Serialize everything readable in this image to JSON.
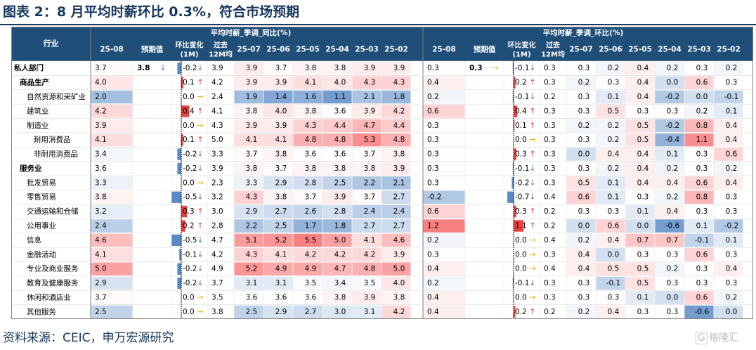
{
  "title": "图表 2：8 月平均时薪环比 0.3%，符合市场预期",
  "source": "资料来源：CEIC，申万宏源研究",
  "watermark": "格隆汇",
  "colors": {
    "header": "#1f4e78",
    "header_sub": "#deebf7",
    "pos": "#f8696b",
    "neg": "#5a8ac6",
    "neutral": "#ffffff",
    "arrow_up": "#e03c3c",
    "arrow_down": "#4f81bd",
    "arrow_flat": "#f2a900",
    "bar_pos": "#e83f3f",
    "bar_neg": "#5a8ac6"
  },
  "chart_data": {
    "type": "table",
    "row_header": "行业",
    "groups": [
      {
        "name": "平均时薪_季调_同比(%)",
        "latest_label": "25-08",
        "forecast_label": "预期值",
        "mom_label": "环比变化(1M)",
        "avg_label": "过去12M均",
        "months": [
          "25-07",
          "25-06",
          "25-05",
          "25-04",
          "25-03",
          "25-02"
        ]
      },
      {
        "name": "平均时薪_季调_环比(%)",
        "latest_label": "25-08",
        "forecast_label": "预期值",
        "mom_label": "环比变化(1M)",
        "avg_label": "过去12M均",
        "months": [
          "25-07",
          "25-06",
          "25-05",
          "25-04",
          "25-03",
          "25-02"
        ]
      }
    ],
    "rows": [
      {
        "name": "私人部门",
        "level": 0,
        "bold": true,
        "yoy": {
          "latest": 3.7,
          "forecast": 3.8,
          "forecast_arrow": "down",
          "chg": -0.2,
          "arrow": "down",
          "avg": 3.9,
          "hist": [
            3.9,
            3.7,
            3.8,
            3.8,
            3.9,
            3.9
          ]
        },
        "mom": {
          "latest": 0.3,
          "forecast": 0.3,
          "forecast_arrow": "flat",
          "chg": -0.1,
          "arrow": "down",
          "avg": 0.3,
          "hist": [
            0.3,
            0.2,
            0.4,
            0.2,
            0.3,
            0.2
          ]
        }
      },
      {
        "name": "商品生产",
        "level": 1,
        "bold": true,
        "yoy": {
          "latest": 4.0,
          "chg": 0.1,
          "arrow": "up",
          "avg": 4.2,
          "hist": [
            3.9,
            3.9,
            4.1,
            4.0,
            4.3,
            4.3
          ]
        },
        "mom": {
          "latest": 0.4,
          "chg": 0.2,
          "arrow": "up",
          "avg": 0.3,
          "hist": [
            0.2,
            0.3,
            0.4,
            0.0,
            0.6,
            0.3
          ]
        }
      },
      {
        "name": "自然资源和采矿业",
        "level": 2,
        "yoy": {
          "latest": 2.0,
          "chg": 0.0,
          "arrow": "flat",
          "avg": 2.4,
          "hist": [
            1.9,
            1.4,
            1.6,
            1.1,
            2.1,
            1.8
          ]
        },
        "mom": {
          "latest": 0.2,
          "chg": -0.1,
          "arrow": "down",
          "avg": 0.2,
          "hist": [
            0.3,
            0.1,
            0.4,
            -0.2,
            0.0,
            -0.1
          ]
        }
      },
      {
        "name": "建筑业",
        "level": 2,
        "yoy": {
          "latest": 4.2,
          "chg": 0.4,
          "arrow": "up",
          "avg": 4.1,
          "hist": [
            3.8,
            4.0,
            3.8,
            3.6,
            3.9,
            4.2
          ]
        },
        "mom": {
          "latest": 0.6,
          "chg": 0.4,
          "arrow": "up",
          "avg": 0.3,
          "hist": [
            0.3,
            0.5,
            0.3,
            0.3,
            0.2,
            0.1
          ]
        }
      },
      {
        "name": "制造业",
        "level": 2,
        "yoy": {
          "latest": 3.9,
          "chg": 0.0,
          "arrow": "flat",
          "avg": 4.3,
          "hist": [
            3.9,
            3.9,
            4.3,
            4.4,
            4.7,
            4.4
          ]
        },
        "mom": {
          "latest": 0.3,
          "chg": 0.1,
          "arrow": "up",
          "avg": 0.3,
          "hist": [
            0.2,
            0.2,
            0.5,
            -0.2,
            0.8,
            0.4
          ]
        }
      },
      {
        "name": "耐用消费品",
        "level": 3,
        "yoy": {
          "latest": 4.1,
          "chg": 0.1,
          "arrow": "up",
          "avg": 5.0,
          "hist": [
            4.1,
            4.1,
            4.8,
            4.8,
            5.3,
            4.8
          ]
        },
        "mom": {
          "latest": 0.3,
          "chg": 0.0,
          "arrow": "flat",
          "avg": 0.3,
          "hist": [
            0.3,
            0.2,
            0.5,
            -0.4,
            1.1,
            0.4
          ]
        }
      },
      {
        "name": "非耐用消费品",
        "level": 3,
        "yoy": {
          "latest": 3.4,
          "chg": -0.2,
          "arrow": "down",
          "avg": 3.3,
          "hist": [
            3.7,
            3.8,
            3.6,
            3.6,
            3.7,
            3.8
          ]
        },
        "mom": {
          "latest": 0.3,
          "chg": 0.3,
          "arrow": "up",
          "avg": 0.3,
          "hist": [
            0.0,
            0.4,
            0.4,
            0.1,
            0.3,
            0.6
          ]
        }
      },
      {
        "name": "服务业",
        "level": 1,
        "bold": true,
        "yoy": {
          "latest": 3.6,
          "chg": -0.2,
          "arrow": "down",
          "avg": 3.9,
          "hist": [
            3.8,
            3.7,
            3.8,
            3.8,
            3.8,
            3.9
          ]
        },
        "mom": {
          "latest": 0.3,
          "chg": -0.1,
          "arrow": "down",
          "avg": 0.3,
          "hist": [
            0.3,
            0.2,
            0.4,
            0.2,
            0.3,
            0.2
          ]
        }
      },
      {
        "name": "批发贸易",
        "level": 2,
        "yoy": {
          "latest": 3.3,
          "chg": 0.0,
          "arrow": "flat",
          "avg": 2.3,
          "hist": [
            3.3,
            2.9,
            2.8,
            2.5,
            2.2,
            2.1
          ]
        },
        "mom": {
          "latest": 0.3,
          "chg": -0.2,
          "arrow": "down",
          "avg": 0.3,
          "hist": [
            0.5,
            0.1,
            0.4,
            0.4,
            0.6,
            0.4
          ]
        }
      },
      {
        "name": "零售贸易",
        "level": 2,
        "yoy": {
          "latest": 3.8,
          "chg": -0.5,
          "arrow": "down",
          "avg": 3.2,
          "hist": [
            4.3,
            3.8,
            3.7,
            3.9,
            3.7,
            2.7
          ]
        },
        "mom": {
          "latest": -0.2,
          "chg": -0.7,
          "arrow": "down",
          "avg": 0.4,
          "hist": [
            0.6,
            0.1,
            0.3,
            0.2,
            0.8,
            0.3
          ]
        }
      },
      {
        "name": "交通运输和仓储",
        "level": 2,
        "yoy": {
          "latest": 3.2,
          "chg": 0.3,
          "arrow": "up",
          "avg": 3.0,
          "hist": [
            2.9,
            2.7,
            2.6,
            2.8,
            2.4,
            2.4
          ]
        },
        "mom": {
          "latest": 0.6,
          "chg": 0.3,
          "arrow": "up",
          "avg": 0.2,
          "hist": [
            0.3,
            0.3,
            0.1,
            0.4,
            0.3,
            0.3
          ]
        }
      },
      {
        "name": "公用事业",
        "level": 2,
        "yoy": {
          "latest": 2.4,
          "chg": 0.2,
          "arrow": "up",
          "avg": 2.8,
          "hist": [
            2.2,
            2.5,
            1.7,
            1.8,
            2.7,
            2.7
          ]
        },
        "mom": {
          "latest": 1.2,
          "chg": 1.1,
          "arrow": "up",
          "avg": 0.2,
          "hist": [
            0.0,
            0.6,
            0.0,
            -0.6,
            0.1,
            -0.2
          ]
        }
      },
      {
        "name": "信息",
        "level": 2,
        "yoy": {
          "latest": 4.6,
          "chg": -0.5,
          "arrow": "down",
          "avg": 4.7,
          "hist": [
            5.1,
            5.2,
            5.5,
            5.0,
            4.1,
            4.6
          ]
        },
        "mom": {
          "latest": 0.2,
          "chg": 0.0,
          "arrow": "flat",
          "avg": 0.4,
          "hist": [
            0.2,
            0.4,
            0.7,
            0.7,
            -0.1,
            0.1
          ]
        }
      },
      {
        "name": "金融活动",
        "level": 2,
        "yoy": {
          "latest": 4.1,
          "chg": -0.1,
          "arrow": "down",
          "avg": 4.2,
          "hist": [
            4.3,
            4.1,
            4.2,
            4.2,
            4.2,
            3.9
          ]
        },
        "mom": {
          "latest": 0.3,
          "chg": 0.0,
          "arrow": "flat",
          "avg": 0.3,
          "hist": [
            0.4,
            0.0,
            0.3,
            0.3,
            0.6,
            0.3
          ]
        }
      },
      {
        "name": "专业及商业服务",
        "level": 2,
        "yoy": {
          "latest": 5.0,
          "chg": -0.2,
          "arrow": "down",
          "avg": 4.9,
          "hist": [
            5.2,
            4.9,
            4.9,
            4.7,
            4.8,
            5.0
          ]
        },
        "mom": {
          "latest": 0.4,
          "chg": 0.0,
          "arrow": "flat",
          "avg": 0.4,
          "hist": [
            0.4,
            0.5,
            0.5,
            0.2,
            0.3,
            0.4
          ]
        }
      },
      {
        "name": "教育及健康服务",
        "level": 2,
        "yoy": {
          "latest": 2.9,
          "chg": -0.2,
          "arrow": "down",
          "avg": 3.7,
          "hist": [
            3.1,
            3.1,
            3.5,
            3.4,
            3.5,
            4.0
          ]
        },
        "mom": {
          "latest": 0.2,
          "chg": -0.1,
          "arrow": "down",
          "avg": 0.3,
          "hist": [
            0.3,
            -0.1,
            0.5,
            0.3,
            0.3,
            0.3
          ]
        }
      },
      {
        "name": "休闲和酒店业",
        "level": 2,
        "yoy": {
          "latest": 3.7,
          "chg": 0.0,
          "arrow": "flat",
          "avg": 3.5,
          "hist": [
            3.6,
            3.6,
            3.6,
            3.8,
            3.9,
            3.8
          ]
        },
        "mom": {
          "latest": 0.4,
          "chg": 0.0,
          "arrow": "flat",
          "avg": 0.3,
          "hist": [
            0.3,
            0.3,
            0.1,
            0.0,
            0.6,
            0.2
          ]
        }
      },
      {
        "name": "其他服务",
        "level": 2,
        "yoy": {
          "latest": 2.5,
          "chg": 0.0,
          "arrow": "flat",
          "avg": 3.8,
          "hist": [
            2.5,
            2.9,
            2.7,
            3.0,
            3.1,
            4.2
          ]
        },
        "mom": {
          "latest": 0.4,
          "chg": 0.2,
          "arrow": "up",
          "avg": 0.2,
          "hist": [
            0.2,
            0.4,
            0.3,
            0.3,
            -0.6,
            0.0
          ]
        }
      }
    ]
  }
}
